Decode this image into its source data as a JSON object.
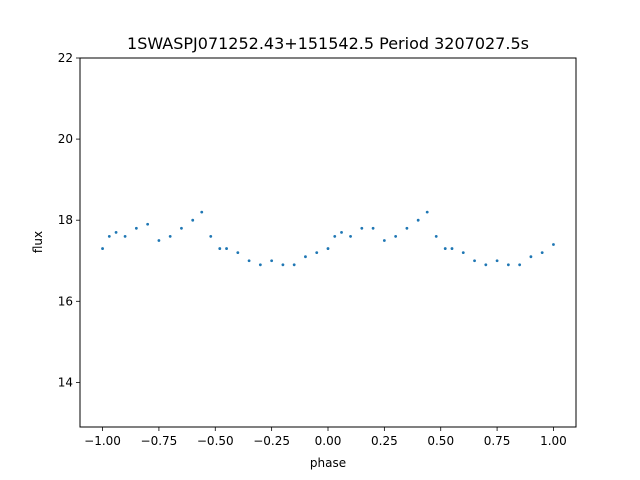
{
  "chart_data": {
    "type": "scatter",
    "title": "1SWASPJ071252.43+151542.5 Period 3207027.5s",
    "xlabel": "phase",
    "ylabel": "flux",
    "xlim": [
      -1.1,
      1.1
    ],
    "ylim": [
      12.9,
      22.0
    ],
    "xticks": [
      -1.0,
      -0.75,
      -0.5,
      -0.25,
      0.0,
      0.25,
      0.5,
      0.75,
      1.0
    ],
    "xtick_labels": [
      "−1.00",
      "−0.75",
      "−0.50",
      "−0.25",
      "0.00",
      "0.25",
      "0.50",
      "0.75",
      "1.00"
    ],
    "yticks": [
      14,
      16,
      18,
      20,
      22
    ],
    "ytick_labels": [
      "14",
      "16",
      "18",
      "20",
      "22"
    ],
    "grid": false,
    "legend": "none",
    "marker_color": "#1f77b4",
    "series": [
      {
        "x": [
          -1.0,
          -0.97,
          -0.94,
          -0.9,
          -0.85,
          -0.8,
          -0.75,
          -0.7,
          -0.65,
          -0.6,
          -0.56,
          -0.52,
          -0.48,
          -0.45,
          -0.4,
          -0.35,
          -0.3,
          -0.25,
          -0.2,
          -0.15,
          -0.1,
          -0.05,
          0.0,
          0.03,
          0.06,
          0.1,
          0.15,
          0.2,
          0.25,
          0.3,
          0.35,
          0.4,
          0.44,
          0.48,
          0.52,
          0.55,
          0.6,
          0.65,
          0.7,
          0.75,
          0.8,
          0.85,
          0.9,
          0.95,
          1.0
        ],
        "y": [
          17.3,
          17.6,
          17.7,
          17.6,
          17.8,
          17.9,
          17.5,
          17.6,
          17.8,
          18.0,
          18.2,
          17.6,
          17.3,
          17.3,
          17.2,
          17.0,
          16.9,
          17.0,
          16.9,
          16.9,
          17.1,
          17.2,
          17.3,
          17.6,
          17.7,
          17.6,
          17.8,
          17.8,
          17.5,
          17.6,
          17.8,
          18.0,
          18.2,
          17.6,
          17.3,
          17.3,
          17.2,
          17.0,
          16.9,
          17.0,
          16.9,
          16.9,
          17.1,
          17.2,
          17.4
        ]
      }
    ]
  }
}
